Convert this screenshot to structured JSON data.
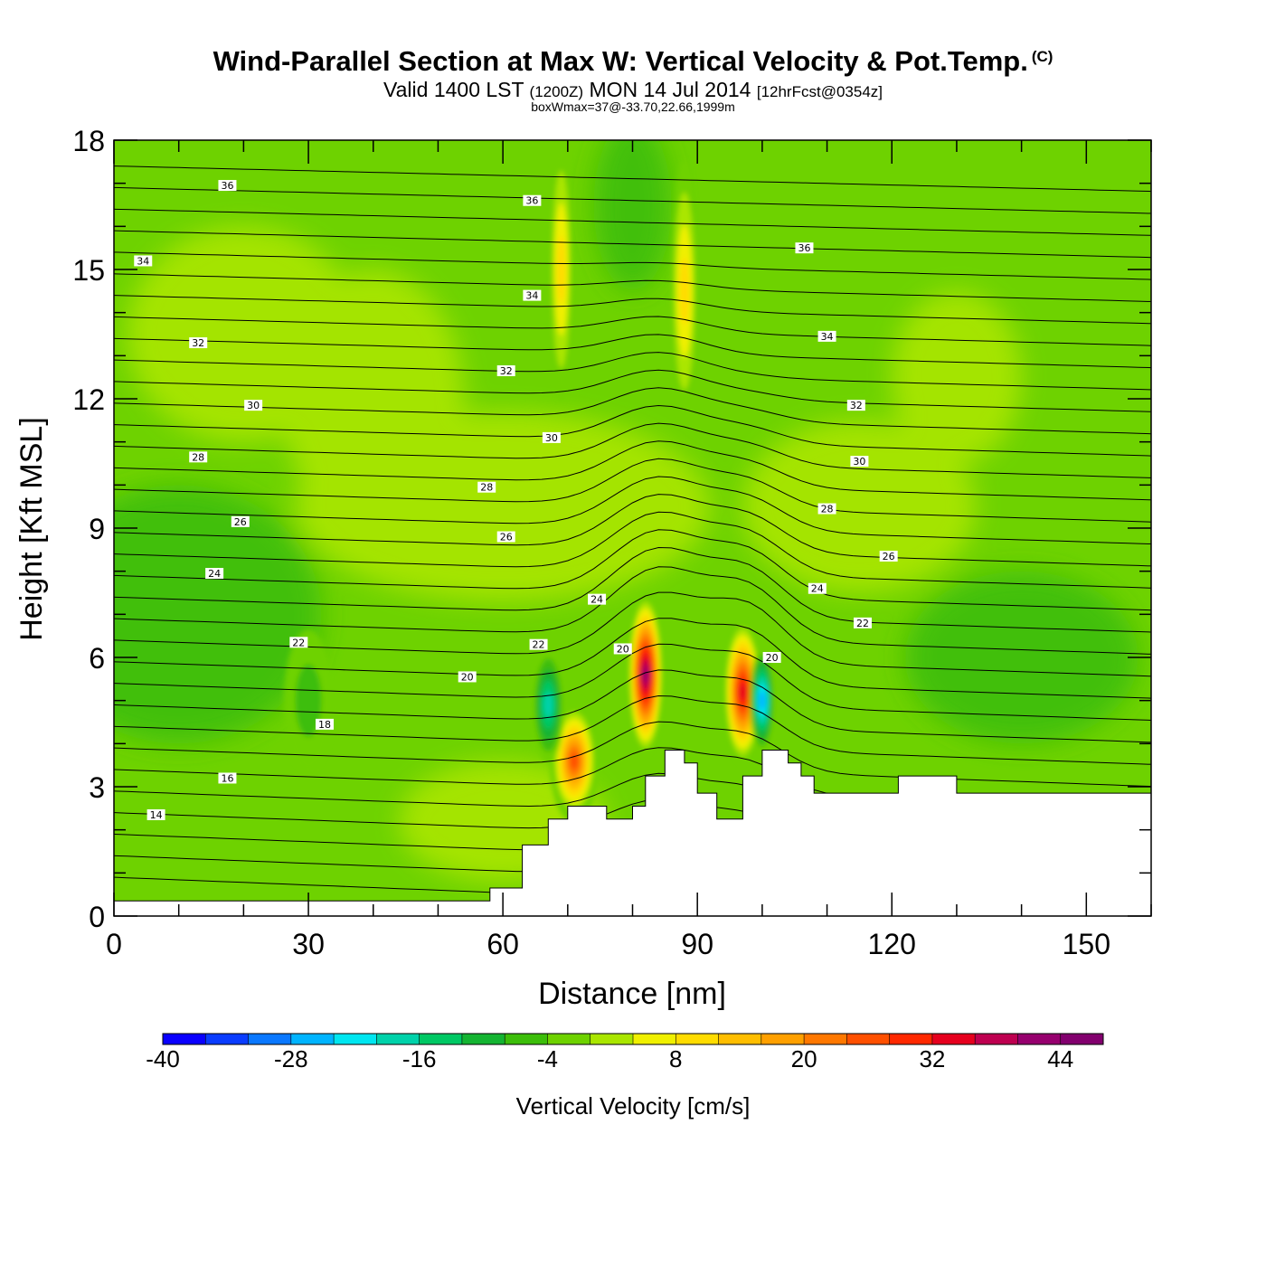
{
  "chart_data": {
    "type": "heatmap",
    "title": "Wind-Parallel Section at Max W: Vertical Velocity & Pot.Temp.",
    "copyright": "(C)",
    "subtitle_main_a": "Valid 1400 LST",
    "subtitle_small_a": "(1200Z)",
    "subtitle_main_b": "MON 14 Jul 2014",
    "subtitle_small_b": "[12hrFcst@0354z]",
    "subtitle2": "boxWmax=37@-33.70,22.66,1999m",
    "xlabel": "Distance [nm]",
    "ylabel": "Height [Kft MSL]",
    "xlim": [
      0,
      160
    ],
    "ylim": [
      0,
      18
    ],
    "xticks": [
      0,
      30,
      60,
      90,
      120,
      150
    ],
    "yticks": [
      0,
      3,
      6,
      9,
      12,
      15,
      18
    ],
    "background_field": -4,
    "terrain": [
      [
        0,
        0.35
      ],
      [
        58,
        0.35
      ],
      [
        58,
        0.65
      ],
      [
        63,
        0.65
      ],
      [
        63,
        1.65
      ],
      [
        67,
        1.65
      ],
      [
        67,
        2.25
      ],
      [
        70,
        2.25
      ],
      [
        70,
        2.55
      ],
      [
        76,
        2.55
      ],
      [
        76,
        2.25
      ],
      [
        80,
        2.25
      ],
      [
        80,
        2.55
      ],
      [
        82,
        2.55
      ],
      [
        82,
        3.25
      ],
      [
        85,
        3.25
      ],
      [
        85,
        3.85
      ],
      [
        88,
        3.85
      ],
      [
        88,
        3.55
      ],
      [
        90,
        3.55
      ],
      [
        90,
        2.85
      ],
      [
        93,
        2.85
      ],
      [
        93,
        2.25
      ],
      [
        97,
        2.25
      ],
      [
        97,
        3.25
      ],
      [
        100,
        3.25
      ],
      [
        100,
        3.85
      ],
      [
        104,
        3.85
      ],
      [
        104,
        3.55
      ],
      [
        106,
        3.55
      ],
      [
        106,
        3.25
      ],
      [
        108,
        3.25
      ],
      [
        108,
        2.85
      ],
      [
        121,
        2.85
      ],
      [
        121,
        3.25
      ],
      [
        130,
        3.25
      ],
      [
        130,
        2.85
      ],
      [
        160,
        2.85
      ]
    ],
    "velocity_cells": [
      {
        "x": 71,
        "y": 3.6,
        "rx": 3.5,
        "ry": 1.4,
        "w": 26
      },
      {
        "x": 67,
        "y": 4.9,
        "rx": 2.2,
        "ry": 1.3,
        "w": -18
      },
      {
        "x": 82,
        "y": 5.6,
        "rx": 2.4,
        "ry": 1.8,
        "w": 40
      },
      {
        "x": 97,
        "y": 5.2,
        "rx": 2.6,
        "ry": 1.6,
        "w": 32
      },
      {
        "x": 100,
        "y": 5.0,
        "rx": 1.6,
        "ry": 1.2,
        "w": -26
      },
      {
        "x": 88,
        "y": 14.5,
        "rx": 1.8,
        "ry": 3.0,
        "w": 8
      },
      {
        "x": 69,
        "y": 15.0,
        "rx": 1.5,
        "ry": 3.0,
        "w": 8
      },
      {
        "x": 30,
        "y": 5.0,
        "rx": 3.5,
        "ry": 1.6,
        "w": -8
      }
    ],
    "theta_levels": [
      14,
      16,
      18,
      20,
      22,
      24,
      26,
      28,
      30,
      32,
      34,
      36
    ],
    "theta_label_positions": [
      {
        "value": 14,
        "x": 6.5,
        "y": 2.35
      },
      {
        "value": 16,
        "x": 17.5,
        "y": 3.2
      },
      {
        "value": 18,
        "x": 32.5,
        "y": 4.45
      },
      {
        "value": 20,
        "x": 54.5,
        "y": 5.55
      },
      {
        "value": 22,
        "x": 28.5,
        "y": 6.35
      },
      {
        "value": 24,
        "x": 15.5,
        "y": 7.95
      },
      {
        "value": 26,
        "x": 19.5,
        "y": 9.15
      },
      {
        "value": 28,
        "x": 13.0,
        "y": 10.65
      },
      {
        "value": 30,
        "x": 21.5,
        "y": 11.85
      },
      {
        "value": 32,
        "x": 13.0,
        "y": 13.3
      },
      {
        "value": 34,
        "x": 4.5,
        "y": 15.2
      },
      {
        "value": 36,
        "x": 17.5,
        "y": 16.95
      },
      {
        "value": 20,
        "x": 78.5,
        "y": 6.2
      },
      {
        "value": 22,
        "x": 65.5,
        "y": 6.3
      },
      {
        "value": 24,
        "x": 74.5,
        "y": 7.35
      },
      {
        "value": 20,
        "x": 101.5,
        "y": 6.0
      },
      {
        "value": 26,
        "x": 60.5,
        "y": 8.8
      },
      {
        "value": 28,
        "x": 57.5,
        "y": 9.95
      },
      {
        "value": 30,
        "x": 67.5,
        "y": 11.1
      },
      {
        "value": 32,
        "x": 60.5,
        "y": 12.65
      },
      {
        "value": 34,
        "x": 64.5,
        "y": 14.4
      },
      {
        "value": 36,
        "x": 64.5,
        "y": 16.6
      },
      {
        "value": 22,
        "x": 115.5,
        "y": 6.8
      },
      {
        "value": 24,
        "x": 108.5,
        "y": 7.6
      },
      {
        "value": 26,
        "x": 119.5,
        "y": 8.35
      },
      {
        "value": 28,
        "x": 110.0,
        "y": 9.45
      },
      {
        "value": 30,
        "x": 115.0,
        "y": 10.55
      },
      {
        "value": 32,
        "x": 114.5,
        "y": 11.85
      },
      {
        "value": 34,
        "x": 110.0,
        "y": 13.45
      },
      {
        "value": 36,
        "x": 106.5,
        "y": 15.5
      }
    ],
    "colorbar": {
      "title": "Vertical Velocity [cm/s]",
      "min": -40,
      "max": 48,
      "step": 4,
      "tick_values": [
        -40,
        -28,
        -16,
        -4,
        8,
        20,
        32,
        44
      ],
      "tick_labels": [
        "-40",
        "-28",
        "-16",
        "-4",
        "8",
        "20",
        "32",
        "44"
      ],
      "colors": [
        "#0a00ff",
        "#0a3cff",
        "#0a78ff",
        "#00b4ff",
        "#00e6f0",
        "#00d2aa",
        "#00c864",
        "#14b432",
        "#3cbe0a",
        "#6ed200",
        "#aae600",
        "#f0f000",
        "#ffdc00",
        "#ffbe00",
        "#ffa000",
        "#ff7800",
        "#ff5000",
        "#ff2800",
        "#e6001e",
        "#be0050",
        "#96006e",
        "#82006e"
      ]
    }
  }
}
